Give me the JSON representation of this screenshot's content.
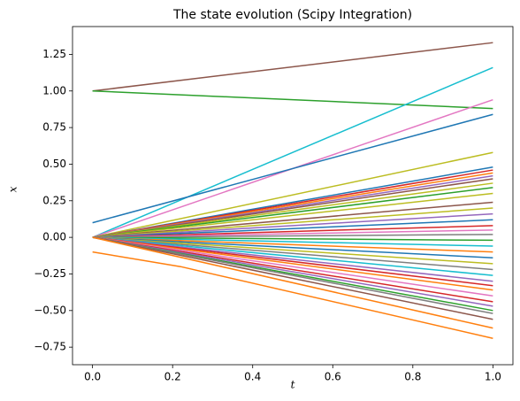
{
  "chart_data": {
    "type": "line",
    "title": "The state evolution (Scipy Integration)",
    "x_label": "t",
    "y_label": "x",
    "x": [
      0,
      1
    ],
    "xlim": [
      -0.05,
      1.05
    ],
    "ylim": [
      -0.87,
      1.44
    ],
    "xticks": [
      {
        "value": 0,
        "label": "0.0"
      },
      {
        "value": 0.2,
        "label": "0.2"
      },
      {
        "value": 0.4,
        "label": "0.4"
      },
      {
        "value": 0.6,
        "label": "0.6"
      },
      {
        "value": 0.8,
        "label": "0.8"
      },
      {
        "value": 1,
        "label": "1.0"
      }
    ],
    "yticks": [
      {
        "value": -0.75,
        "label": "−0.75"
      },
      {
        "value": -0.5,
        "label": "−0.50"
      },
      {
        "value": -0.25,
        "label": "−0.25"
      },
      {
        "value": 0,
        "label": "0.00"
      },
      {
        "value": 0.25,
        "label": "0.25"
      },
      {
        "value": 0.5,
        "label": "0.50"
      },
      {
        "value": 0.75,
        "label": "0.75"
      },
      {
        "value": 1,
        "label": "1.00"
      },
      {
        "value": 1.25,
        "label": "1.25"
      }
    ],
    "series": [
      {
        "color": "#8c564b",
        "values": [
          1,
          1.33
        ]
      },
      {
        "color": "#2ca02c",
        "values": [
          1,
          0.88
        ]
      },
      {
        "color": "#17becf",
        "values": [
          0,
          1.16
        ]
      },
      {
        "color": "#e377c2",
        "values": [
          0,
          0.94
        ]
      },
      {
        "color": "#1f77b4",
        "values": [
          0.1,
          0.84
        ]
      },
      {
        "color": "#bcbd22",
        "values": [
          0,
          0.58
        ]
      },
      {
        "color": "#ff7f0e",
        "x": [
          0,
          0.22,
          1
        ],
        "values": [
          -0.1,
          -0.2,
          -0.69
        ]
      },
      {
        "color": "#1f77b4",
        "values": [
          0,
          0.48
        ]
      },
      {
        "color": "#d62728",
        "values": [
          0,
          0.46
        ]
      },
      {
        "color": "#ff7f0e",
        "values": [
          0,
          0.44
        ]
      },
      {
        "color": "#9467bd",
        "values": [
          0,
          0.42
        ]
      },
      {
        "color": "#8c564b",
        "values": [
          0,
          0.4
        ]
      },
      {
        "color": "#bcbd22",
        "values": [
          0,
          0.37
        ]
      },
      {
        "color": "#2ca02c",
        "values": [
          0,
          0.34
        ]
      },
      {
        "color": "#bcbd22",
        "values": [
          0,
          0.3
        ]
      },
      {
        "color": "#8c564b",
        "values": [
          0,
          0.24
        ]
      },
      {
        "color": "#bcbd22",
        "values": [
          0,
          0.2
        ]
      },
      {
        "color": "#9467bd",
        "values": [
          0,
          0.16
        ]
      },
      {
        "color": "#1f77b4",
        "values": [
          0,
          0.12
        ]
      },
      {
        "color": "#d62728",
        "values": [
          0,
          0.08
        ]
      },
      {
        "color": "#e377c2",
        "values": [
          0,
          0.05
        ]
      },
      {
        "color": "#7f7f7f",
        "values": [
          0,
          0.02
        ]
      },
      {
        "color": "#2ca02c",
        "values": [
          0,
          -0.02
        ]
      },
      {
        "color": "#17becf",
        "values": [
          0,
          -0.06
        ]
      },
      {
        "color": "#ff7f0e",
        "values": [
          0,
          -0.1
        ]
      },
      {
        "color": "#1f77b4",
        "values": [
          0,
          -0.14
        ]
      },
      {
        "color": "#bcbd22",
        "values": [
          0,
          -0.18
        ]
      },
      {
        "color": "#7f7f7f",
        "values": [
          0,
          -0.22
        ]
      },
      {
        "color": "#17becf",
        "values": [
          0,
          -0.26
        ]
      },
      {
        "color": "#9467bd",
        "values": [
          0,
          -0.3
        ]
      },
      {
        "color": "#d62728",
        "values": [
          0,
          -0.33
        ]
      },
      {
        "color": "#ff7f0e",
        "values": [
          0,
          -0.36
        ]
      },
      {
        "color": "#e377c2",
        "values": [
          0,
          -0.4
        ]
      },
      {
        "color": "#d62728",
        "values": [
          0,
          -0.44
        ]
      },
      {
        "color": "#9467bd",
        "values": [
          0,
          -0.47
        ]
      },
      {
        "color": "#2ca02c",
        "values": [
          0,
          -0.5
        ]
      },
      {
        "color": "#7f7f7f",
        "values": [
          0,
          -0.52
        ]
      },
      {
        "color": "#8c564b",
        "values": [
          0,
          -0.56
        ]
      },
      {
        "color": "#ff7f0e",
        "values": [
          0,
          -0.62
        ]
      }
    ]
  }
}
